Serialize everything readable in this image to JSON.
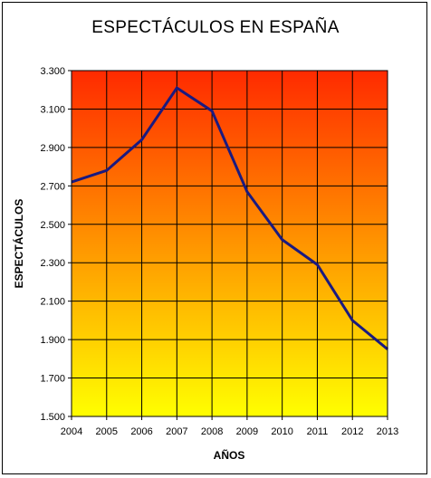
{
  "chart_data": {
    "type": "line",
    "title": "ESPECTÁCULOS EN ESPAÑA",
    "xlabel": "AÑOS",
    "ylabel": "ESPECTÁCULOS",
    "categories": [
      "2004",
      "2005",
      "2006",
      "2007",
      "2008",
      "2009",
      "2010",
      "2011",
      "2012",
      "2013"
    ],
    "series": [
      {
        "values": [
          2720,
          2780,
          2940,
          3210,
          3090,
          2670,
          2420,
          2290,
          2000,
          1850
        ]
      }
    ],
    "ylim": [
      1500,
      3300
    ],
    "yticks": [
      1500,
      1700,
      1900,
      2100,
      2300,
      2500,
      2700,
      2900,
      3100,
      3300
    ],
    "ytick_labels": [
      "1.500",
      "1.700",
      "1.900",
      "2.100",
      "2.300",
      "2.500",
      "2.700",
      "2.900",
      "3.100",
      "3.300"
    ],
    "grid": true,
    "line_color": "#1a1a80",
    "background_gradient": [
      "#ff2a00",
      "#ffff00"
    ]
  }
}
